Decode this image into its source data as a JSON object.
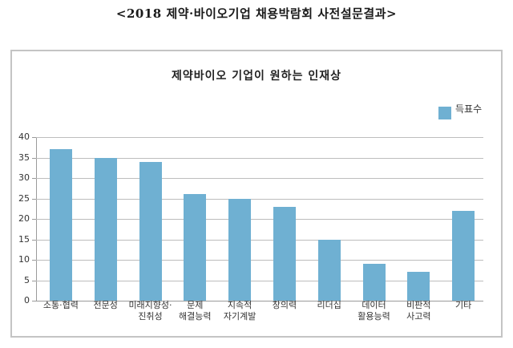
{
  "page": {
    "title": "<2018 제약·바이오기업 채용박람회 사전설문결과>"
  },
  "chart_data": {
    "type": "bar",
    "title": "제약바이오 기업이 원하는 인재상",
    "categories": [
      "소통·협력",
      "전문성",
      "미래지향성·\n진취성",
      "문제\n해결능력",
      "지속적\n자기계발",
      "창의력",
      "리더십",
      "데이터\n활용능력",
      "비판적\n사고력",
      "기타"
    ],
    "series": [
      {
        "name": "득표수",
        "values": [
          37,
          35,
          34,
          26,
          25,
          23,
          15,
          9,
          7,
          22
        ],
        "color": "#6fb0d2"
      }
    ],
    "xlabel": "",
    "ylabel": "",
    "ylim": [
      0,
      40
    ],
    "yticks": [
      "0",
      "5",
      "10",
      "15",
      "20",
      "25",
      "30",
      "35",
      "40"
    ],
    "grid": true,
    "legend_position": "top-right"
  },
  "legend": {
    "label": "득표수",
    "color": "#6fb0d2"
  }
}
